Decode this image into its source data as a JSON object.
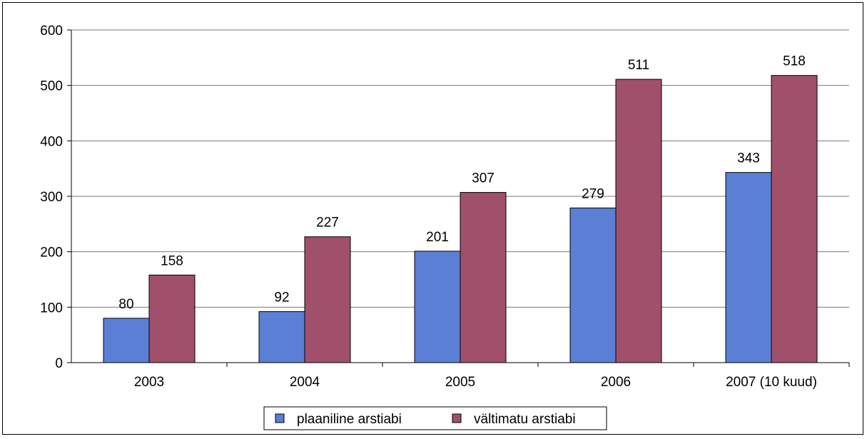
{
  "chart_data": {
    "type": "bar",
    "title": "",
    "xlabel": "",
    "ylabel": "",
    "categories": [
      "2003",
      "2004",
      "2005",
      "2006",
      "2007 (10 kuud)"
    ],
    "series": [
      {
        "name": "plaaniline arstiabi",
        "values": [
          80,
          92,
          201,
          279,
          343
        ],
        "color": "#5b7fd4"
      },
      {
        "name": "vältimatu arstiabi",
        "values": [
          158,
          227,
          307,
          511,
          518
        ],
        "color": "#a0506a"
      }
    ],
    "ylim": [
      0,
      600
    ],
    "yticks": [
      0,
      100,
      200,
      300,
      400,
      500,
      600
    ],
    "grid": true,
    "legend": "bottom"
  }
}
